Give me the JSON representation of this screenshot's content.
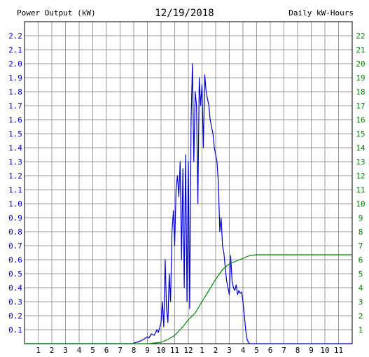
{
  "colors": {
    "primary": "#0000cc",
    "cumulative": "#008800",
    "grid": "#999999",
    "axis": "#000000"
  },
  "chart_data": {
    "type": "line",
    "title": "12/19/2018",
    "ylabel": "Power Output (kW)",
    "y2label": "Daily kW-Hours",
    "x_ticks": [
      "1",
      "2",
      "3",
      "4",
      "5",
      "6",
      "7",
      "8",
      "9",
      "10",
      "11",
      "12",
      "1",
      "2",
      "3",
      "4",
      "5",
      "6",
      "7",
      "8",
      "9",
      "10",
      "11"
    ],
    "xlim": [
      0,
      24
    ],
    "ylim": [
      0,
      2.3
    ],
    "y_ticks": [
      "0.1",
      "0.2",
      "0.3",
      "0.4",
      "0.5",
      "0.6",
      "0.7",
      "0.8",
      "0.9",
      "1.0",
      "1.1",
      "1.2",
      "1.3",
      "1.4",
      "1.5",
      "1.6",
      "1.7",
      "1.8",
      "1.9",
      "2.0",
      "2.1",
      "2.2"
    ],
    "y2lim": [
      0,
      23
    ],
    "y2_ticks": [
      "1",
      "2",
      "3",
      "4",
      "5",
      "6",
      "7",
      "8",
      "9",
      "10",
      "11",
      "12",
      "13",
      "14",
      "15",
      "16",
      "17",
      "18",
      "19",
      "20",
      "21",
      "22"
    ],
    "grid": true,
    "series": [
      {
        "name": "Power Output (kW)",
        "axis": "left",
        "x": [
          0,
          7.9,
          8.2,
          8.5,
          8.7,
          9.0,
          9.1,
          9.3,
          9.5,
          9.7,
          9.8,
          10.0,
          10.1,
          10.2,
          10.3,
          10.4,
          10.5,
          10.6,
          10.7,
          10.8,
          10.9,
          11.0,
          11.1,
          11.2,
          11.3,
          11.4,
          11.5,
          11.6,
          11.7,
          11.8,
          11.9,
          12.0,
          12.1,
          12.2,
          12.3,
          12.4,
          12.5,
          12.6,
          12.7,
          12.8,
          12.9,
          13.0,
          13.1,
          13.2,
          13.3,
          13.4,
          13.5,
          13.6,
          13.7,
          13.8,
          13.9,
          14.0,
          14.1,
          14.2,
          14.3,
          14.4,
          14.5,
          14.6,
          14.7,
          14.8,
          14.9,
          15.0,
          15.1,
          15.2,
          15.3,
          15.4,
          15.5,
          15.6,
          15.7,
          15.8,
          15.9,
          16.0,
          16.1,
          16.2,
          16.3,
          16.4,
          16.5,
          16.6,
          16.7,
          16.8,
          16.9,
          17.0,
          17.1,
          17.2,
          17.4,
          17.6,
          24
        ],
        "values": [
          0,
          0,
          0.01,
          0.02,
          0.03,
          0.05,
          0.04,
          0.07,
          0.06,
          0.1,
          0.08,
          0.15,
          0.3,
          0.12,
          0.6,
          0.25,
          0.15,
          0.5,
          0.3,
          0.8,
          0.95,
          0.7,
          1.1,
          1.2,
          1.05,
          1.3,
          0.6,
          1.25,
          0.4,
          1.35,
          0.3,
          1.3,
          0.25,
          1.6,
          2.0,
          1.3,
          1.8,
          1.7,
          1.0,
          1.9,
          1.7,
          1.85,
          1.4,
          1.92,
          1.8,
          1.75,
          1.7,
          1.6,
          1.55,
          1.5,
          1.4,
          1.35,
          1.3,
          1.15,
          0.8,
          0.9,
          0.7,
          0.65,
          0.55,
          0.45,
          0.4,
          0.35,
          0.63,
          0.45,
          0.4,
          0.38,
          0.42,
          0.35,
          0.38,
          0.36,
          0.37,
          0.3,
          0.2,
          0.1,
          0.03,
          0.01,
          0,
          0,
          0,
          0,
          0,
          0,
          0,
          0,
          0,
          0,
          0
        ]
      },
      {
        "name": "Daily kW-Hours",
        "axis": "right",
        "x": [
          0,
          9,
          10,
          10.5,
          11,
          11.5,
          12,
          12.5,
          13,
          13.5,
          14,
          14.5,
          15,
          15.5,
          16,
          16.5,
          17,
          17.5,
          18,
          24
        ],
        "values": [
          0,
          0,
          0.1,
          0.3,
          0.6,
          1.1,
          1.7,
          2.2,
          3.0,
          3.8,
          4.6,
          5.3,
          5.7,
          5.9,
          6.1,
          6.3,
          6.35,
          6.35,
          6.35,
          6.35
        ]
      }
    ]
  }
}
